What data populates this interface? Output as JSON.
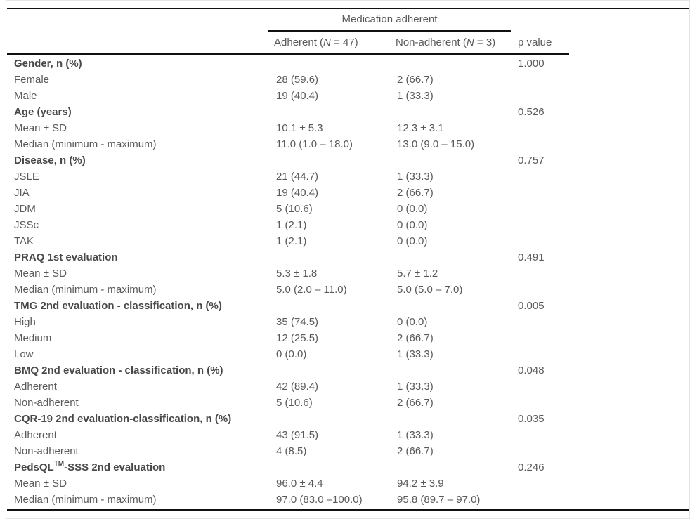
{
  "table": {
    "group_header": "Medication adherent",
    "columns": {
      "adherent": {
        "pre": "Adherent (",
        "n": "N",
        "post": " = 47)"
      },
      "nonadherent": {
        "pre": "Non-adherent (",
        "n": "N",
        "post": " = 3)"
      },
      "p_label": "p value"
    },
    "rows": [
      {
        "label": "Gender, n (%)",
        "bold": true,
        "adherent": "",
        "nonadherent": "",
        "p": "1.000"
      },
      {
        "label": "Female",
        "adherent": "28 (59.6)",
        "nonadherent": "2 (66.7)",
        "p": ""
      },
      {
        "label": "Male",
        "adherent": "19 (40.4)",
        "nonadherent": "1 (33.3)",
        "p": ""
      },
      {
        "label": "Age (years)",
        "bold": true,
        "adherent": "",
        "nonadherent": "",
        "p": "0.526"
      },
      {
        "label": "Mean ± SD",
        "adherent": "10.1 ± 5.3",
        "nonadherent": "12.3 ± 3.1",
        "p": ""
      },
      {
        "label": "Median (minimum - maximum)",
        "adherent": "11.0 (1.0 – 18.0)",
        "nonadherent": "13.0 (9.0 – 15.0)",
        "p": ""
      },
      {
        "label": "Disease, n (%)",
        "bold": true,
        "adherent": "",
        "nonadherent": "",
        "p": "0.757"
      },
      {
        "label": "JSLE",
        "adherent": "21 (44.7)",
        "nonadherent": "1 (33.3)",
        "p": ""
      },
      {
        "label": "JIA",
        "adherent": "19 (40.4)",
        "nonadherent": "2 (66.7)",
        "p": ""
      },
      {
        "label": "JDM",
        "adherent": "5 (10.6)",
        "nonadherent": "0 (0.0)",
        "p": ""
      },
      {
        "label": "JSSc",
        "adherent": "1 (2.1)",
        "nonadherent": "0 (0.0)",
        "p": ""
      },
      {
        "label": "TAK",
        "adherent": "1 (2.1)",
        "nonadherent": "0 (0.0)",
        "p": ""
      },
      {
        "label": "PRAQ 1st evaluation",
        "bold": true,
        "adherent": "",
        "nonadherent": "",
        "p": "0.491"
      },
      {
        "label": "Mean ± SD",
        "adherent": "5.3 ± 1.8",
        "nonadherent": "5.7 ± 1.2",
        "p": ""
      },
      {
        "label": "Median (minimum - maximum)",
        "adherent": "5.0 (2.0 – 11.0)",
        "nonadherent": "5.0 (5.0 – 7.0)",
        "p": ""
      },
      {
        "label": "TMG 2nd evaluation - classification, n (%)",
        "bold": true,
        "adherent": "",
        "nonadherent": "",
        "p": "0.005"
      },
      {
        "label": "High",
        "adherent": "35 (74.5)",
        "nonadherent": "0 (0.0)",
        "p": ""
      },
      {
        "label": "Medium",
        "adherent": "12 (25.5)",
        "nonadherent": "2 (66.7)",
        "p": ""
      },
      {
        "label": "Low",
        "adherent": "0 (0.0)",
        "nonadherent": "1 (33.3)",
        "p": ""
      },
      {
        "label": "BMQ 2nd evaluation - classification, n (%)",
        "bold": true,
        "adherent": "",
        "nonadherent": "",
        "p": "0.048"
      },
      {
        "label": "Adherent",
        "adherent": "42 (89.4)",
        "nonadherent": "1 (33.3)",
        "p": ""
      },
      {
        "label": "Non-adherent",
        "adherent": "5 (10.6)",
        "nonadherent": "2 (66.7)",
        "p": ""
      },
      {
        "label": "CQR-19 2nd evaluation-classification, n (%)",
        "bold": true,
        "adherent": "",
        "nonadherent": "",
        "p": "0.035"
      },
      {
        "label": "Adherent",
        "adherent": "43 (91.5)",
        "nonadherent": "1 (33.3)",
        "p": ""
      },
      {
        "label": "Non-adherent",
        "adherent": "4 (8.5)",
        "nonadherent": "2 (66.7)",
        "p": ""
      },
      {
        "label": "PedsQL",
        "sup": "TM",
        "label_post": "-SSS 2nd evaluation",
        "bold": true,
        "adherent": "",
        "nonadherent": "",
        "p": "0.246"
      },
      {
        "label": "Mean ± SD",
        "adherent": "96.0 ± 4.4",
        "nonadherent": "94.2 ± 3.9",
        "p": ""
      },
      {
        "label": "Median (minimum - maximum)",
        "adherent": "97.0 (83.0 –100.0)",
        "nonadherent": "95.8 (89.7 – 97.0)",
        "p": ""
      }
    ]
  },
  "colors": {
    "rule": "#111111",
    "text": "#58595b",
    "bold_text": "#47484a",
    "frame": "#e4e4e4"
  }
}
